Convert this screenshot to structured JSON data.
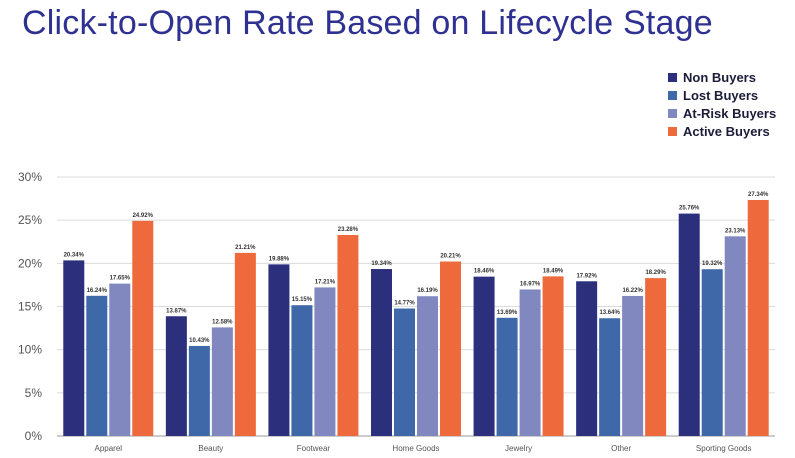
{
  "title": "Click-to-Open Rate Based on Lifecycle Stage",
  "chart_data": {
    "type": "bar",
    "title": "Click-to-Open Rate Based on Lifecycle Stage",
    "xlabel": "",
    "ylabel": "",
    "ylim": [
      0,
      30
    ],
    "yticks": [
      "0%",
      "5%",
      "10%",
      "15%",
      "20%",
      "25%",
      "30%"
    ],
    "grid": true,
    "legend_position": "top-right",
    "categories": [
      "Apparel",
      "Beauty",
      "Footwear",
      "Home Goods",
      "Jewelry",
      "Other",
      "Sporting Goods"
    ],
    "series": [
      {
        "name": "Non Buyers",
        "color": "#2b2f7c",
        "values": [
          20.34,
          13.87,
          19.88,
          19.34,
          18.46,
          17.92,
          25.76
        ],
        "labels": [
          "20.34%",
          "13.87%",
          "19.88%",
          "19.34%",
          "18.46%",
          "17.92%",
          "25.76%"
        ]
      },
      {
        "name": "Lost Buyers",
        "color": "#3f68a8",
        "values": [
          16.24,
          10.43,
          15.15,
          14.77,
          13.69,
          13.64,
          19.32
        ],
        "labels": [
          "16.24%",
          "10.43%",
          "15.15%",
          "14.77%",
          "13.69%",
          "13.64%",
          "19.32%"
        ]
      },
      {
        "name": "At-Risk Buyers",
        "color": "#8088bf",
        "values": [
          17.65,
          12.58,
          17.21,
          16.19,
          16.97,
          16.22,
          23.13
        ],
        "labels": [
          "17.65%",
          "12.58%",
          "17.21%",
          "16.19%",
          "16.97%",
          "16.22%",
          "23.13%"
        ]
      },
      {
        "name": "Active Buyers",
        "color": "#ee6a3c",
        "values": [
          24.92,
          21.21,
          23.28,
          20.21,
          18.49,
          18.29,
          27.34
        ],
        "labels": [
          "24.92%",
          "21.21%",
          "23.28%",
          "20.21%",
          "18.49%",
          "18.29%",
          "27.34%"
        ]
      }
    ]
  }
}
